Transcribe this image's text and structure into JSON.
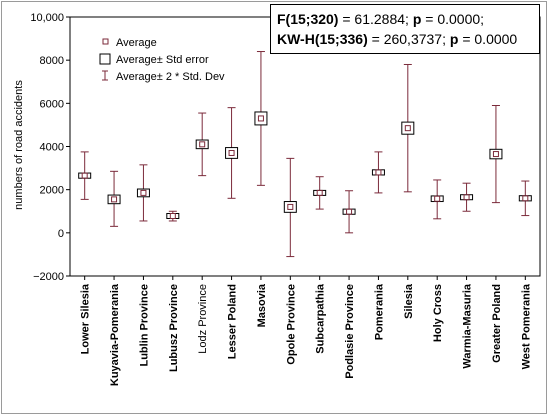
{
  "stats": {
    "line1": {
      "stat_label": "F(15;320)",
      "stat_value": " = 61.2884; ",
      "p_label": "p",
      "p_value": " = 0.0000;"
    },
    "line2": {
      "stat_label": "KW-H(15;336)",
      "stat_value": " = 260,3737; ",
      "p_label": "p",
      "p_value": " = 0.0000"
    }
  },
  "legend": {
    "average": "Average",
    "std_error": "Average± Std error",
    "std_dev": "Average± 2 * Std. Dev"
  },
  "colors": {
    "marker": "#7b2a3a",
    "box": "#000000",
    "axis": "#000000"
  },
  "chart_data": {
    "type": "box-whisker",
    "ylabel": "numbers of road accidents",
    "ylim": [
      -2000,
      10000
    ],
    "yticks": [
      "−2000",
      "0",
      "2000",
      "4000",
      "6000",
      "8000",
      "10,000"
    ],
    "ytick_values": [
      -2000,
      0,
      2000,
      4000,
      6000,
      8000,
      10000
    ],
    "categories": [
      "Lower Silesia",
      "Kuyavia-Pomerania",
      "Lublin  Province",
      "Lubusz Province",
      "Lodz Province",
      "Lesser Poland",
      "Masovia",
      "Opole Province",
      "Subcarpathia",
      "Podlasie Province",
      "Pomerania",
      "Silesia",
      "Holy Cross",
      "Warmia-Masuria",
      "Greater Poland",
      "West Pomerania"
    ],
    "bold_categories": [
      true,
      true,
      true,
      true,
      false,
      true,
      true,
      true,
      true,
      true,
      true,
      true,
      true,
      true,
      true,
      true
    ],
    "mean": [
      2650,
      1550,
      1850,
      780,
      4100,
      3700,
      5300,
      1200,
      1850,
      980,
      2800,
      4850,
      1580,
      1650,
      3650,
      1600
    ],
    "std_error": [
      120,
      200,
      180,
      60,
      200,
      250,
      300,
      250,
      100,
      120,
      120,
      280,
      130,
      100,
      220,
      120
    ],
    "lower_2sd": [
      1550,
      300,
      550,
      550,
      2650,
      1600,
      2200,
      -1100,
      1100,
      0,
      1850,
      1900,
      650,
      1000,
      1400,
      800
    ],
    "upper_2sd": [
      3750,
      2850,
      3150,
      1000,
      5550,
      5800,
      8400,
      3450,
      2600,
      1950,
      3750,
      7800,
      2450,
      2300,
      5900,
      2400
    ]
  }
}
